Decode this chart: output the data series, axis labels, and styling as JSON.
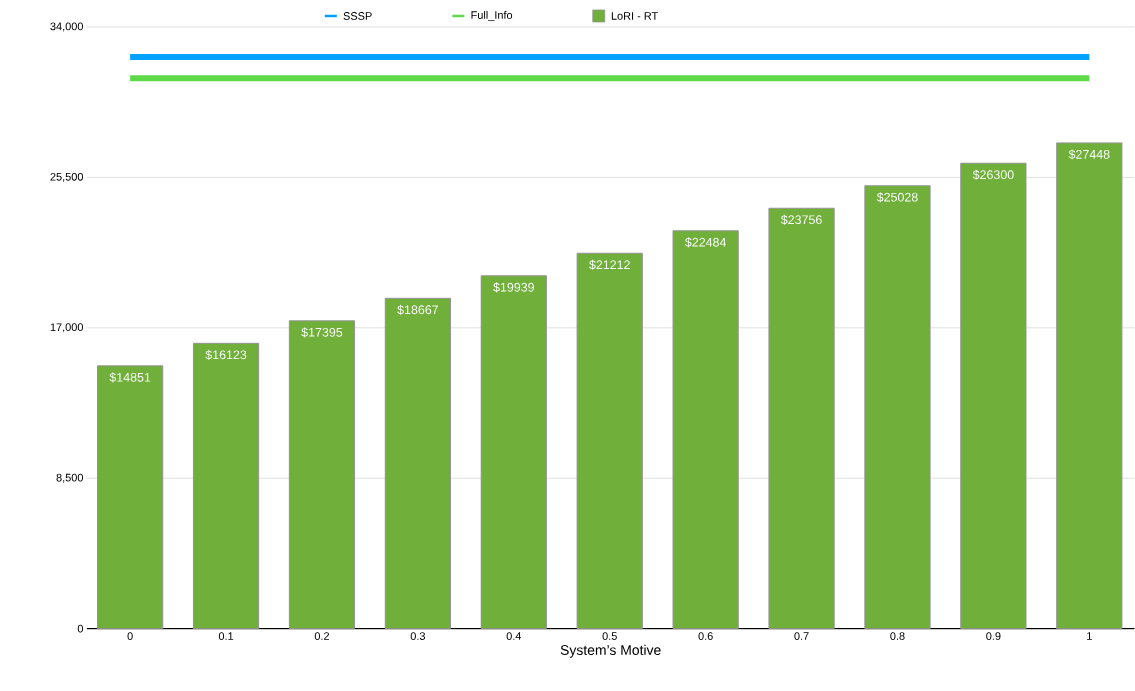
{
  "chart_data": {
    "type": "bar",
    "xlabel": "System’s Motive",
    "categories": [
      "0",
      "0.1",
      "0.2",
      "0.3",
      "0.4",
      "0.5",
      "0.6",
      "0.7",
      "0.8",
      "0.9",
      "1"
    ],
    "series": [
      {
        "name": "SSSP",
        "type": "line",
        "color": "#00a2ff",
        "values": [
          32300,
          32300,
          32300,
          32300,
          32300,
          32300,
          32300,
          32300,
          32300,
          32300,
          32300
        ]
      },
      {
        "name": "Full_Info",
        "type": "line",
        "color": "#5dd94a",
        "values": [
          31100,
          31100,
          31100,
          31100,
          31100,
          31100,
          31100,
          31100,
          31100,
          31100,
          31100
        ]
      },
      {
        "name": "LoRI - RT",
        "color": "#70b03a",
        "values": [
          14851,
          16123,
          17395,
          18667,
          19939,
          21212,
          22484,
          23756,
          25028,
          26300,
          27448
        ],
        "value_labels": [
          "$14851",
          "$16123",
          "$17395",
          "$18667",
          "$19939",
          "$21212",
          "$22484",
          "$23756",
          "$25028",
          "$26300",
          "$27448"
        ]
      }
    ],
    "ylim": [
      0,
      34000
    ],
    "yticks": [
      0,
      {
        "value": 8500,
        "label": "8,500"
      },
      {
        "value": 17000,
        "label": "17,000"
      },
      {
        "value": 25500,
        "label": "25,500"
      },
      {
        "value": 34000,
        "label": "34,000"
      }
    ],
    "grid": "y",
    "legend": "top",
    "marker": "none",
    "line_style": "solid"
  }
}
